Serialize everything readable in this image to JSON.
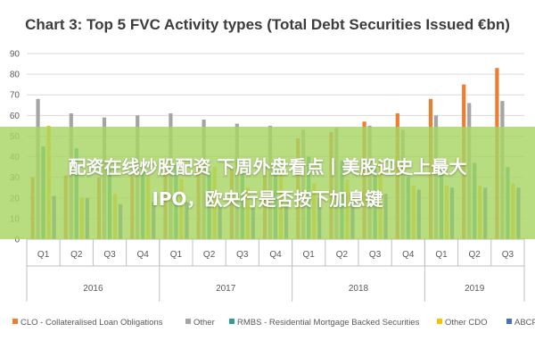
{
  "chart_data": {
    "type": "bar",
    "title": "Chart 3: Top 5 FVC Activity types (Total Debt Securities Issued €bn)",
    "xlabel": "",
    "ylabel": "",
    "ylim": [
      0,
      90
    ],
    "yticks": [
      0,
      10,
      20,
      30,
      40,
      50,
      60,
      70,
      80,
      90
    ],
    "grid": true,
    "legend_position": "bottom",
    "categories": [
      "Q1",
      "Q2",
      "Q3",
      "Q4",
      "Q1",
      "Q2",
      "Q3",
      "Q4",
      "Q1",
      "Q2",
      "Q3",
      "Q4",
      "Q1",
      "Q2",
      "Q3"
    ],
    "year_groups": [
      {
        "label": "2016",
        "count": 4
      },
      {
        "label": "2017",
        "count": 4
      },
      {
        "label": "2018",
        "count": 4
      },
      {
        "label": "2019",
        "count": 3
      }
    ],
    "series": [
      {
        "name": "CLO - Collateralised Loan Obligations",
        "color": "#ed7d31",
        "values": [
          30,
          31,
          30,
          31,
          33,
          36,
          35,
          36,
          49,
          52,
          57,
          61,
          68,
          75,
          83
        ]
      },
      {
        "name": "Other",
        "color": "#a5a5a5",
        "values": [
          68,
          61,
          59,
          60,
          61,
          58,
          56,
          55,
          53,
          54,
          55,
          53,
          60,
          66,
          67
        ]
      },
      {
        "name": "RMBS - Residential Mortgage Backed Securities",
        "color": "#2e9e9a",
        "values": [
          45,
          44,
          35,
          35,
          36,
          33,
          33,
          34,
          40,
          38,
          34,
          30,
          36,
          37,
          35
        ]
      },
      {
        "name": "Other CDO",
        "color": "#ffc000",
        "values": [
          55,
          20,
          22,
          30,
          29,
          35,
          25,
          33,
          27,
          29,
          38,
          26,
          26,
          26,
          27
        ]
      },
      {
        "name": "ABCP",
        "color": "#4472c4",
        "values": [
          21,
          20,
          17,
          18,
          18,
          16,
          15,
          17,
          20,
          21,
          22,
          24,
          25,
          25,
          25
        ]
      }
    ]
  },
  "overlay": {
    "line1": "配资在线炒股配资 下周外盘看点丨美股迎史上最大",
    "line2": "IPO，欧央行是否按下加息键"
  }
}
